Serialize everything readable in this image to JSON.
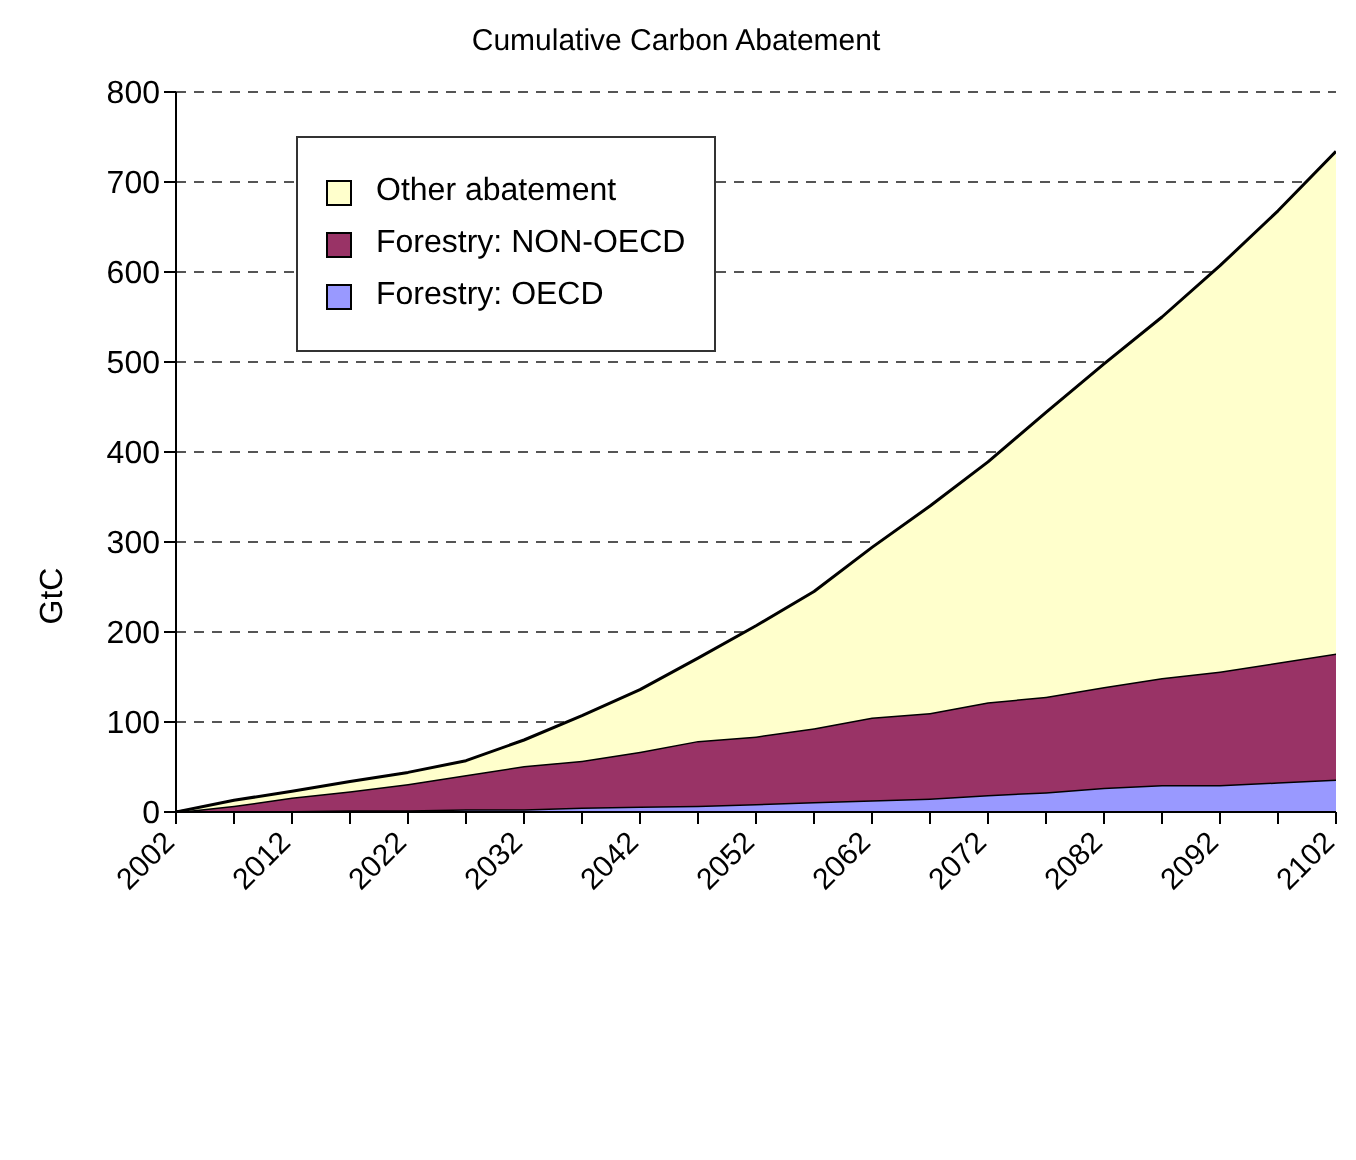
{
  "chart_data": {
    "type": "area",
    "title": "Cumulative Carbon Abatement",
    "ylabel": "GtC",
    "stacked": true,
    "x": [
      2002,
      2007,
      2012,
      2017,
      2022,
      2027,
      2032,
      2037,
      2042,
      2047,
      2052,
      2057,
      2062,
      2067,
      2072,
      2077,
      2082,
      2087,
      2092,
      2097,
      2102
    ],
    "series": [
      {
        "name": "Forestry: OECD",
        "color": "#9999ff",
        "values": [
          0,
          0,
          1,
          2,
          2,
          3,
          3,
          5,
          6,
          7,
          9,
          11,
          13,
          15,
          19,
          22,
          27,
          30,
          30,
          33,
          36
        ]
      },
      {
        "name": "Forestry: NON-OECD",
        "color": "#993366",
        "values": [
          0,
          7,
          15,
          21,
          29,
          38,
          48,
          52,
          61,
          72,
          75,
          82,
          92,
          95,
          103,
          106,
          112,
          119,
          126,
          133,
          140
        ]
      },
      {
        "name": "Other abatement",
        "color": "#ffffcc",
        "values": [
          0,
          6,
          7,
          11,
          13,
          16,
          29,
          50,
          69,
          92,
          123,
          152,
          189,
          230,
          267,
          316,
          359,
          401,
          451,
          502,
          558
        ]
      }
    ],
    "xlim": [
      2002,
      2102
    ],
    "xticks": [
      2002,
      {
        "value": 2007,
        "label": null
      },
      2012,
      {
        "value": 2017,
        "label": null
      },
      2022,
      {
        "value": 2027,
        "label": null
      },
      2032,
      {
        "value": 2037,
        "label": null
      },
      2042,
      {
        "value": 2047,
        "label": null
      },
      2052,
      {
        "value": 2057,
        "label": null
      },
      2062,
      {
        "value": 2067,
        "label": null
      },
      2072,
      {
        "value": 2077,
        "label": null
      },
      2082,
      {
        "value": 2087,
        "label": null
      },
      2092,
      {
        "value": 2097,
        "label": null
      },
      2102
    ],
    "ylim": [
      0,
      800
    ],
    "yticks": [
      0,
      100,
      200,
      300,
      400,
      500,
      600,
      700,
      800
    ],
    "grid": "y",
    "legend": "top left",
    "line_style": "solid",
    "marker": "none"
  }
}
